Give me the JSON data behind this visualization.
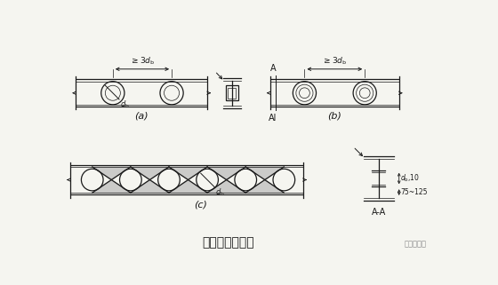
{
  "title": "梁的圆形孔补强",
  "bg_color": "#f5f5f0",
  "line_color": "#1a1a1a",
  "label_a": "(a)",
  "label_b": "(b)",
  "label_c": "(c)",
  "watermark": "钢结构设计"
}
